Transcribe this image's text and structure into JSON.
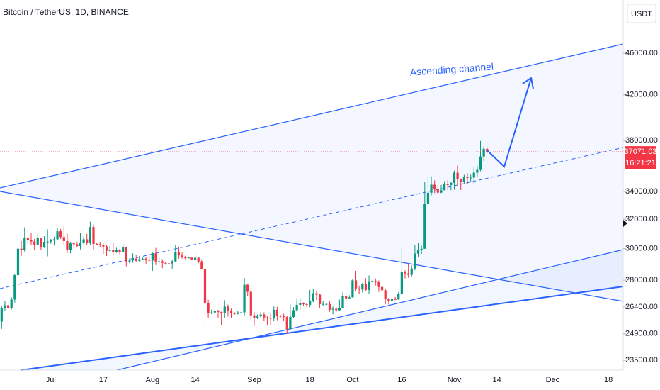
{
  "header": "Bitcoin / TetherUS, 1D, BINANCE",
  "currency": "USDT",
  "chart_data": {
    "type": "candlestick",
    "annotation": "Ascending channel",
    "up_color": "#089981",
    "down_color": "#f23645",
    "log_scale": true,
    "grid": false,
    "ylim": [
      23000,
      51670
    ],
    "yticks": [
      {
        "value": 23500,
        "label": "23500.00"
      },
      {
        "value": 24900,
        "label": "24900.00"
      },
      {
        "value": 26400,
        "label": "26400.00"
      },
      {
        "value": 28000,
        "label": "28000.00"
      },
      {
        "value": 30000,
        "label": "30000.00"
      },
      {
        "value": 32000,
        "label": "32000.00"
      },
      {
        "value": 34000,
        "label": "34000.00"
      },
      {
        "value": 38000,
        "label": "38000.00"
      },
      {
        "value": 42000,
        "label": "42000.00"
      },
      {
        "value": 46000,
        "label": "46000.00"
      }
    ],
    "last_price": 37071.03,
    "countdown": "16:21:21",
    "categories": [
      null,
      null,
      null,
      null,
      null,
      null,
      null,
      null,
      null,
      null,
      null,
      null,
      null,
      null,
      null,
      "Jul",
      null,
      null,
      null,
      null,
      null,
      null,
      null,
      null,
      null,
      null,
      null,
      null,
      null,
      null,
      null,
      "17",
      null,
      null,
      null,
      null,
      null,
      null,
      null,
      null,
      null,
      null,
      null,
      null,
      null,
      null,
      "Aug",
      null,
      null,
      null,
      null,
      null,
      null,
      null,
      null,
      null,
      null,
      null,
      null,
      "14",
      null,
      null,
      null,
      null,
      null,
      null,
      null,
      null,
      null,
      null,
      null,
      null,
      null,
      null,
      null,
      null,
      null,
      "Sep",
      null,
      null,
      null,
      null,
      null,
      null,
      null,
      null,
      null,
      null,
      null,
      null,
      null,
      null,
      null,
      null,
      "18",
      null,
      null,
      null,
      null,
      null,
      null,
      null,
      null,
      null,
      null,
      null,
      null,
      "Oct",
      null,
      null,
      null,
      null,
      null,
      null,
      null,
      null,
      null,
      null,
      null,
      null,
      null,
      null,
      "16",
      null,
      null,
      null,
      null,
      null,
      null,
      null,
      null,
      null,
      null,
      null,
      null,
      null,
      null,
      null,
      "Nov",
      null,
      null,
      null,
      null,
      null,
      null,
      null,
      null,
      null,
      null,
      null,
      null,
      "14",
      null,
      null,
      null,
      null,
      null,
      null,
      null,
      null,
      null,
      null,
      null,
      null,
      null,
      null,
      null,
      null,
      "Dec",
      null,
      null,
      null,
      null,
      null,
      null,
      null,
      null,
      null,
      null,
      null,
      null,
      null,
      null,
      null,
      null,
      "18",
      null,
      null,
      null,
      null
    ],
    "ohlc": [
      [
        25580,
        26480,
        25170,
        26340
      ],
      [
        26340,
        26750,
        26180,
        26510
      ],
      [
        26510,
        26700,
        26260,
        26340
      ],
      [
        26340,
        26980,
        26260,
        26840
      ],
      [
        26840,
        28400,
        26660,
        28310
      ],
      [
        28310,
        30800,
        28260,
        30000
      ],
      [
        30000,
        30500,
        29530,
        29890
      ],
      [
        29890,
        31430,
        29810,
        30690
      ],
      [
        30690,
        30800,
        30250,
        30550
      ],
      [
        30550,
        31050,
        30260,
        30470
      ],
      [
        30470,
        30650,
        29930,
        30270
      ],
      [
        30270,
        31000,
        30220,
        30690
      ],
      [
        30690,
        30710,
        29920,
        30080
      ],
      [
        30080,
        30830,
        30040,
        30450
      ],
      [
        30450,
        31290,
        29500,
        30470
      ],
      [
        30470,
        30650,
        30320,
        30590
      ],
      [
        30590,
        30790,
        30200,
        30620
      ],
      [
        30620,
        31380,
        30570,
        31160
      ],
      [
        31160,
        31320,
        30640,
        30770
      ],
      [
        30770,
        31500,
        30250,
        30500
      ],
      [
        30500,
        31000,
        29700,
        29900
      ],
      [
        29900,
        30450,
        29700,
        30350
      ],
      [
        30350,
        30380,
        30050,
        30290
      ],
      [
        30290,
        30440,
        30070,
        30170
      ],
      [
        30170,
        31040,
        29950,
        30410
      ],
      [
        30410,
        30800,
        30290,
        30620
      ],
      [
        30620,
        30990,
        30260,
        30380
      ],
      [
        30380,
        31820,
        30250,
        31450
      ],
      [
        31450,
        31630,
        29950,
        30310
      ],
      [
        30310,
        30390,
        30250,
        30290
      ],
      [
        30290,
        30450,
        30100,
        30230
      ],
      [
        30230,
        30340,
        29660,
        30140
      ],
      [
        30140,
        30230,
        29520,
        29860
      ],
      [
        29860,
        30190,
        29760,
        29910
      ],
      [
        29910,
        30420,
        29570,
        29800
      ],
      [
        29800,
        30060,
        29720,
        29900
      ],
      [
        29900,
        29990,
        29640,
        29790
      ],
      [
        29790,
        30340,
        29740,
        30080
      ],
      [
        30080,
        30100,
        28860,
        29170
      ],
      [
        29170,
        29380,
        29060,
        29230
      ],
      [
        29230,
        29690,
        29090,
        29350
      ],
      [
        29350,
        29570,
        29120,
        29210
      ],
      [
        29210,
        29530,
        29110,
        29310
      ],
      [
        29310,
        29410,
        29260,
        29350
      ],
      [
        29350,
        29450,
        29030,
        29270
      ],
      [
        29270,
        29530,
        29110,
        29230
      ],
      [
        29230,
        29740,
        28580,
        29700
      ],
      [
        29700,
        30050,
        28940,
        29170
      ],
      [
        29170,
        29410,
        28960,
        29180
      ],
      [
        29180,
        29320,
        28750,
        29080
      ],
      [
        29080,
        29110,
        28960,
        29050
      ],
      [
        29050,
        29170,
        28960,
        29040
      ],
      [
        29040,
        29250,
        28700,
        29180
      ],
      [
        29180,
        30240,
        29120,
        29770
      ],
      [
        29770,
        30130,
        29350,
        29560
      ],
      [
        29560,
        29740,
        29350,
        29430
      ],
      [
        29430,
        29540,
        29320,
        29400
      ],
      [
        29400,
        29470,
        29360,
        29420
      ],
      [
        29420,
        29450,
        29250,
        29280
      ],
      [
        29280,
        29680,
        29090,
        29410
      ],
      [
        29410,
        29480,
        29050,
        29170
      ],
      [
        29170,
        29260,
        28700,
        28700
      ],
      [
        28700,
        28780,
        25170,
        26620
      ],
      [
        26620,
        26820,
        25800,
        26050
      ],
      [
        26050,
        26260,
        25990,
        26090
      ],
      [
        26090,
        26260,
        26000,
        26190
      ],
      [
        26190,
        26240,
        25800,
        26120
      ],
      [
        26120,
        26140,
        25360,
        26040
      ],
      [
        26040,
        26800,
        25800,
        26430
      ],
      [
        26430,
        26550,
        25860,
        26160
      ],
      [
        26160,
        26310,
        25780,
        26050
      ],
      [
        26050,
        26110,
        25960,
        26010
      ],
      [
        26010,
        26180,
        25980,
        26090
      ],
      [
        26090,
        26240,
        25880,
        26100
      ],
      [
        26100,
        28140,
        25920,
        27720
      ],
      [
        27720,
        27760,
        27070,
        27300
      ],
      [
        27300,
        27490,
        25660,
        25930
      ],
      [
        25930,
        26130,
        25330,
        25800
      ],
      [
        25800,
        25980,
        25720,
        25870
      ],
      [
        25870,
        26120,
        25790,
        25970
      ],
      [
        25970,
        26100,
        25600,
        25810
      ],
      [
        25810,
        25870,
        25370,
        25780
      ],
      [
        25780,
        26020,
        25360,
        25750
      ],
      [
        25750,
        26440,
        25610,
        26240
      ],
      [
        26240,
        26420,
        25650,
        25900
      ],
      [
        25900,
        25950,
        25800,
        25890
      ],
      [
        25890,
        26020,
        25600,
        25830
      ],
      [
        25830,
        25880,
        24900,
        25160
      ],
      [
        25160,
        26550,
        25130,
        25840
      ],
      [
        25840,
        26400,
        25760,
        26220
      ],
      [
        26220,
        26860,
        26130,
        26530
      ],
      [
        26530,
        26920,
        26240,
        26610
      ],
      [
        26610,
        26670,
        26470,
        26570
      ],
      [
        26570,
        26620,
        26400,
        26530
      ],
      [
        26530,
        27410,
        26390,
        26760
      ],
      [
        26760,
        27490,
        26680,
        27210
      ],
      [
        27210,
        27380,
        26810,
        27130
      ],
      [
        27130,
        27150,
        26360,
        26570
      ],
      [
        26570,
        26740,
        26480,
        26580
      ],
      [
        26580,
        26640,
        26510,
        26580
      ],
      [
        26580,
        26740,
        26130,
        26250
      ],
      [
        26250,
        26430,
        25990,
        26300
      ],
      [
        26300,
        26400,
        26110,
        26220
      ],
      [
        26220,
        26840,
        26200,
        26350
      ],
      [
        26350,
        27270,
        26340,
        27030
      ],
      [
        27030,
        27230,
        26720,
        26910
      ],
      [
        26910,
        27090,
        26880,
        26970
      ],
      [
        26970,
        28060,
        26950,
        27990
      ],
      [
        27990,
        28580,
        27330,
        27500
      ],
      [
        27500,
        27670,
        27160,
        27430
      ],
      [
        27430,
        27830,
        27250,
        27780
      ],
      [
        27780,
        28120,
        27360,
        27410
      ],
      [
        27410,
        28290,
        27170,
        27930
      ],
      [
        27930,
        28000,
        27860,
        27950
      ],
      [
        27950,
        28100,
        27680,
        27920
      ],
      [
        27920,
        27990,
        27290,
        27590
      ],
      [
        27590,
        27730,
        27300,
        27390
      ],
      [
        27390,
        27480,
        26550,
        26880
      ],
      [
        26880,
        26940,
        26560,
        26760
      ],
      [
        26760,
        27100,
        26690,
        26860
      ],
      [
        26860,
        26990,
        26820,
        26850
      ],
      [
        26850,
        27290,
        26820,
        27150
      ],
      [
        27150,
        30000,
        27130,
        28520
      ],
      [
        28520,
        28610,
        28110,
        28420
      ],
      [
        28420,
        28990,
        28150,
        28330
      ],
      [
        28330,
        28930,
        28180,
        28720
      ],
      [
        28720,
        30230,
        28610,
        29680
      ],
      [
        29680,
        30360,
        29480,
        29910
      ],
      [
        29910,
        30200,
        29660,
        29990
      ],
      [
        29990,
        34740,
        29990,
        33090
      ],
      [
        33090,
        35200,
        32880,
        33900
      ],
      [
        33900,
        35130,
        33700,
        34500
      ],
      [
        34500,
        34830,
        33880,
        34150
      ],
      [
        34150,
        34480,
        33840,
        33910
      ],
      [
        33910,
        34480,
        33870,
        34090
      ],
      [
        34090,
        34770,
        34070,
        34530
      ],
      [
        34530,
        34860,
        34080,
        34480
      ],
      [
        34480,
        34720,
        34080,
        34640
      ],
      [
        34640,
        35580,
        34120,
        35420
      ],
      [
        35420,
        35980,
        34370,
        34940
      ],
      [
        34940,
        34950,
        34100,
        34730
      ],
      [
        34730,
        35260,
        34580,
        35080
      ],
      [
        35080,
        35380,
        34530,
        35020
      ],
      [
        35020,
        35270,
        34740,
        35040
      ],
      [
        35040,
        35900,
        34520,
        35420
      ],
      [
        35420,
        35980,
        35120,
        35640
      ],
      [
        35640,
        37970,
        35540,
        36700
      ],
      [
        36700,
        37530,
        36330,
        37320
      ],
      [
        37320,
        37400,
        36950,
        37071.03
      ],
      null,
      null,
      null,
      null,
      null,
      null,
      null,
      null,
      null,
      null,
      null,
      null,
      null,
      null,
      null,
      null,
      null,
      null,
      null,
      null,
      null,
      null,
      null,
      null,
      null,
      null,
      null,
      null,
      null,
      null,
      null,
      null,
      null,
      null,
      null,
      null,
      null,
      null,
      null,
      null,
      null
    ]
  }
}
